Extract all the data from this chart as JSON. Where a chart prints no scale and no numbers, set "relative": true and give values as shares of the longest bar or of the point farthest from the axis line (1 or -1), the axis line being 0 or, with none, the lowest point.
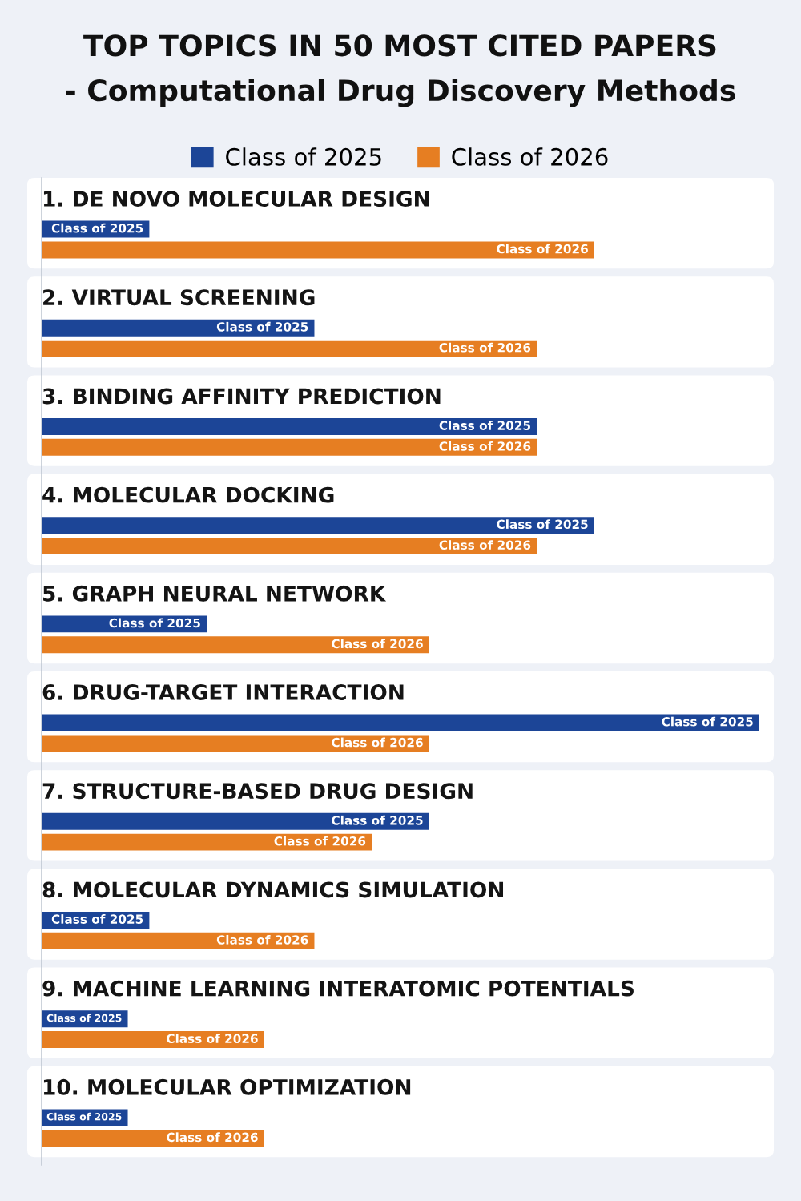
{
  "chart_data": {
    "type": "bar",
    "orientation": "horizontal",
    "relative": true,
    "title": "TOP TOPICS IN 50 MOST CITED PAPERS",
    "subtitle": "- Computational Drug Discovery Methods",
    "legend": "top",
    "categories": [
      "1. DE NOVO MOLECULAR DESIGN",
      "2. VIRTUAL SCREENING",
      "3. BINDING AFFINITY PREDICTION",
      "4. MOLECULAR DOCKING",
      "5. GRAPH NEURAL NETWORK",
      "6. DRUG-TARGET INTERACTION",
      "7. STRUCTURE-BASED DRUG DESIGN",
      "8. MOLECULAR DYNAMICS SIMULATION",
      "9. MACHINE LEARNING INTERATOMIC POTENTIALS",
      "10. MOLECULAR OPTIMIZATION"
    ],
    "series": [
      {
        "name": "Class of 2025",
        "color": "#1c4597",
        "values": [
          0.15,
          0.38,
          0.69,
          0.77,
          0.23,
          1,
          0.54,
          0.15,
          0.12,
          0.12
        ]
      },
      {
        "name": "Class of 2026",
        "color": "#e67e22",
        "values": [
          0.77,
          0.69,
          0.69,
          0.69,
          0.54,
          0.54,
          0.46,
          0.38,
          0.31,
          0.31
        ]
      }
    ]
  }
}
